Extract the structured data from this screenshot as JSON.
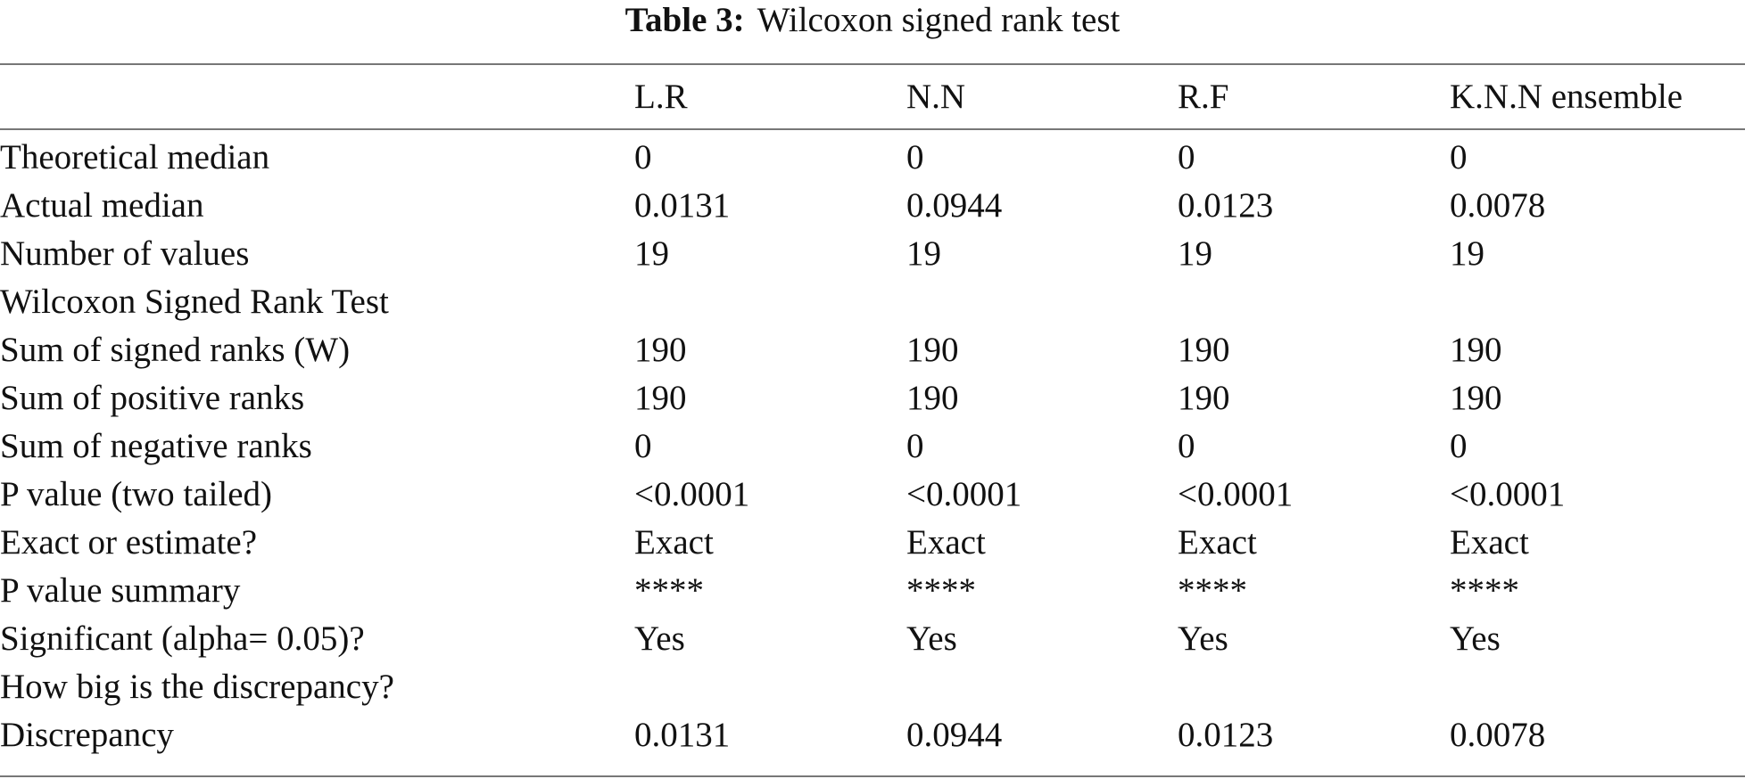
{
  "caption": {
    "label": "Table 3:",
    "text": "Wilcoxon signed rank test"
  },
  "table": {
    "headers": [
      "",
      "L.R",
      "N.N",
      "R.F",
      "K.N.N ensemble"
    ],
    "rows": [
      [
        "Theoretical median",
        "0",
        "0",
        "0",
        "0"
      ],
      [
        "Actual median",
        "0.0131",
        "0.0944",
        "0.0123",
        "0.0078"
      ],
      [
        "Number of values",
        "19",
        "19",
        "19",
        "19"
      ],
      [
        "Wilcoxon Signed Rank Test",
        "",
        "",
        "",
        ""
      ],
      [
        "Sum of signed ranks (W)",
        "190",
        "190",
        "190",
        "190"
      ],
      [
        "Sum of positive ranks",
        "190",
        "190",
        "190",
        "190"
      ],
      [
        "Sum of negative ranks",
        "0",
        "0",
        "0",
        "0"
      ],
      [
        "P value (two tailed)",
        "<0.0001",
        "<0.0001",
        "<0.0001",
        "<0.0001"
      ],
      [
        "Exact or estimate?",
        "Exact",
        "Exact",
        "Exact",
        "Exact"
      ],
      [
        "P value summary",
        "****",
        "****",
        "****",
        "****"
      ],
      [
        "Significant (alpha= 0.05)?",
        "Yes",
        "Yes",
        "Yes",
        "Yes"
      ],
      [
        "How big is the discrepancy?",
        "",
        "",
        "",
        ""
      ],
      [
        "Discrepancy",
        "0.0131",
        "0.0944",
        "0.0123",
        "0.0078"
      ]
    ]
  }
}
